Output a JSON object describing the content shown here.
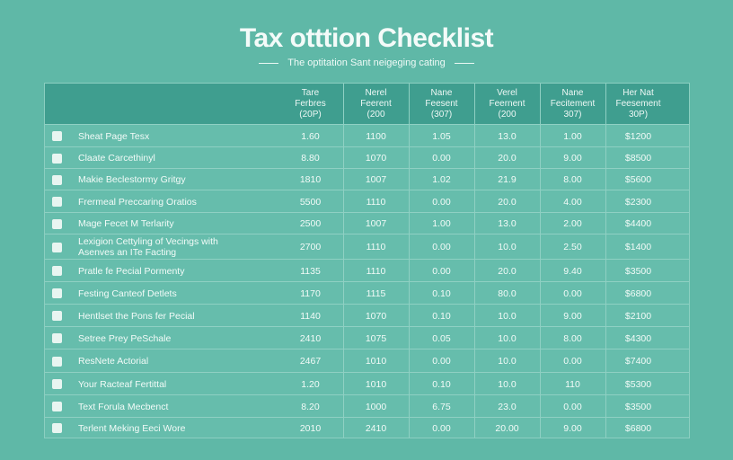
{
  "page": {
    "title": "Tax otttion Checklist",
    "subtitle": "The optitation Sant neigeging cating"
  },
  "table": {
    "headers": [
      "Tare\nFerbres\n(20P)",
      "Nerel\nFeerent\n(200",
      "Nane\nFeesent\n(307)",
      "Verel\nFeernent\n(200",
      "Nane\nFecitement\n307)",
      "Her Nat\nFeesement\n30P)"
    ],
    "rows": [
      {
        "task": "Sheat Page Tesx",
        "values": [
          "1.60",
          "1100",
          "1.05",
          "13.0",
          "1.00",
          "$1200"
        ]
      },
      {
        "task": "Claate Carcethinyl",
        "values": [
          "8.80",
          "1070",
          "0.00",
          "20.0",
          "9.00",
          "$8500"
        ]
      },
      {
        "task": "Makie Beclestormy Gritgy",
        "values": [
          "1810",
          "1007",
          "1.02",
          "21.9",
          "8.00",
          "$5600"
        ]
      },
      {
        "task": "Frermeal Preccaring Oratios",
        "values": [
          "5500",
          "1110",
          "0.00",
          "20.0",
          "4.00",
          "$2300"
        ]
      },
      {
        "task": "Mage Fecet M Terlarity",
        "values": [
          "2500",
          "1007",
          "1.00",
          "13.0",
          "2.00",
          "$4400"
        ]
      },
      {
        "task": "Lexigion Cettyling of Vecings with\nAsenves an ITe Facting",
        "values": [
          "2700",
          "1110",
          "0.00",
          "10.0",
          "2.50",
          "$1400"
        ]
      },
      {
        "task": "Pratle fe Pecial Pormenty",
        "values": [
          "1135",
          "1110",
          "0.00",
          "20.0",
          "9.40",
          "$3500"
        ]
      },
      {
        "task": "Festing Canteof Detlets",
        "values": [
          "1170",
          "1115",
          "0.10",
          "80.0",
          "0.00",
          "$6800"
        ]
      },
      {
        "task": "Hentlset the Pons fer Pecial",
        "values": [
          "1140",
          "1070",
          "0.10",
          "10.0",
          "9.00",
          "$2100"
        ]
      },
      {
        "task": "Setree Prey PeSchale",
        "values": [
          "2410",
          "1075",
          "0.05",
          "10.0",
          "8.00",
          "$4300"
        ]
      },
      {
        "task": "ResNete Actorial",
        "values": [
          "2467",
          "1010",
          "0.00",
          "10.0",
          "0.00",
          "$7400"
        ]
      },
      {
        "task": "Your Racteaf Fertittal",
        "values": [
          "1.20",
          "1010",
          "0.10",
          "10.0",
          "110",
          "$5300"
        ]
      },
      {
        "task": "Text Forula Mecbenct",
        "values": [
          "8.20",
          "1000",
          "6.75",
          "23.0",
          "0.00",
          "$3500"
        ]
      },
      {
        "task": "Terlent Meking Eeci Wore",
        "values": [
          "2010",
          "2410",
          "0.00",
          "20.00",
          "9.00",
          "$6800"
        ]
      }
    ]
  }
}
